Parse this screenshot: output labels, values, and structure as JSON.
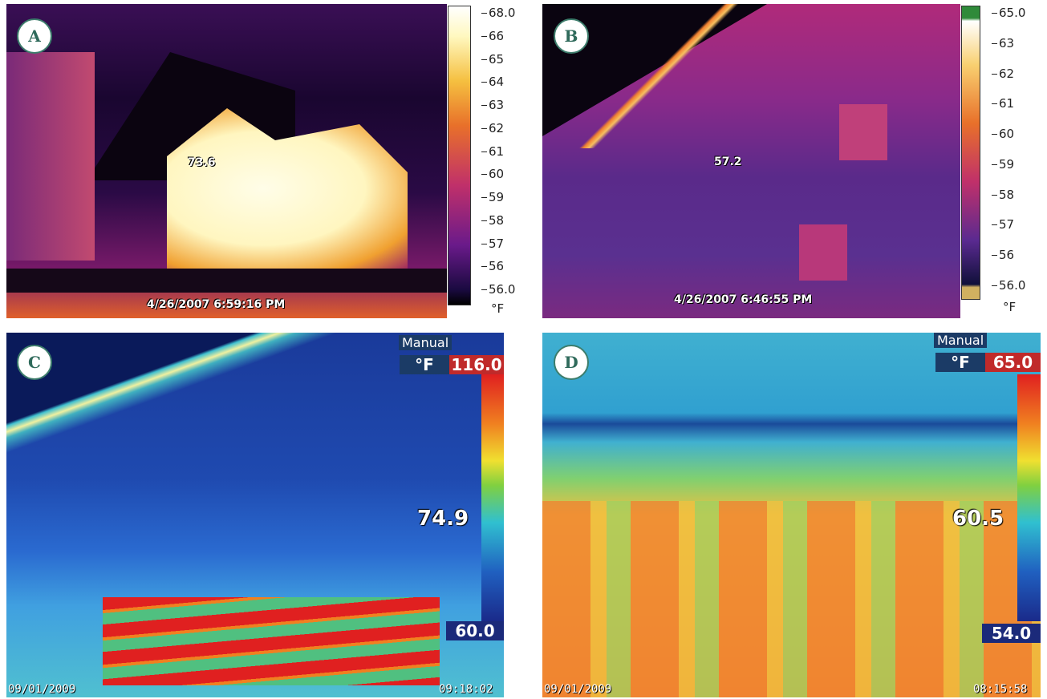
{
  "panels": [
    {
      "label": "A",
      "ticks": [
        "68.0",
        "66",
        "65",
        "64",
        "63",
        "62",
        "61",
        "60",
        "59",
        "58",
        "57",
        "56",
        "56.0"
      ],
      "unit": "°F",
      "spot": "73.6",
      "timestamp": "4/26/2007 6:59:16 PM"
    },
    {
      "label": "B",
      "ticks": [
        "65.0",
        "63",
        "62",
        "61",
        "60",
        "59",
        "58",
        "57",
        "56",
        "56.0"
      ],
      "unit": "°F",
      "spot": "57.2",
      "timestamp": "4/26/2007 6:46:55 PM"
    },
    {
      "label": "C",
      "mode": "Manual",
      "unit": "°F",
      "max": "116.0",
      "spot": "74.9",
      "min": "60.0",
      "date": "09/01/2009",
      "time": "09:18:02"
    },
    {
      "label": "D",
      "mode": "Manual",
      "unit": "°F",
      "max": "65.0",
      "spot": "60.5",
      "min": "54.0",
      "date": "09/01/2009",
      "time": "08:15:58"
    }
  ]
}
